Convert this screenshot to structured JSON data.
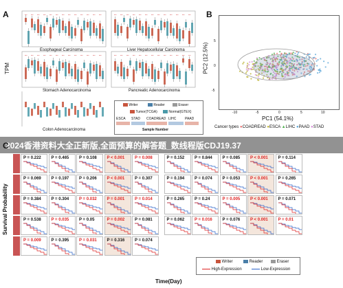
{
  "banner": {
    "title": "2024香港资料大全正新版,全面预算的解答题_数线程版CDJ19.37"
  },
  "panelA": {
    "letter": "A",
    "ylabel": "TPM",
    "subplots": [
      "Esophageal Carcinoma",
      "Liver Hepatocellular Carcinoma",
      "Stomach Adenocarcinoma",
      "Pancreatic Adenocarcinoma",
      "Colon Adenocarcinoma"
    ],
    "legend": {
      "genes": [
        {
          "name": "Writer",
          "color": "#c8553d"
        },
        {
          "name": "Reader",
          "color": "#4a7fa8"
        },
        {
          "name": "Eraser",
          "color": "#999999"
        }
      ],
      "groups": [
        {
          "name": "Tumor(TCGA)",
          "color": "#c8553d"
        },
        {
          "name": "Normal(GTEX)",
          "color": "#4a9aa8"
        }
      ]
    },
    "sample_codes": [
      "ESCA",
      "STAD",
      "COADREAD",
      "LIHC",
      "PAAD"
    ],
    "sample_title": "Sample Number"
  },
  "panelB": {
    "letter": "B",
    "xlabel": "PC1 (54.1%)",
    "ylabel": "PC2 (12.5%)",
    "xticks": [
      "-10",
      "-5",
      "0",
      "5",
      "10"
    ],
    "yticks": [
      "5",
      "0",
      "-5"
    ],
    "legend_title": "Cancer types",
    "legend": [
      {
        "name": "COADREAD",
        "color": "#e86d6d"
      },
      {
        "name": "ESCA",
        "color": "#b9b02e"
      },
      {
        "name": "LIHC",
        "color": "#4fb34f"
      },
      {
        "name": "PAAD",
        "color": "#5aa6d8"
      },
      {
        "name": "STAD",
        "color": "#d58ad8"
      }
    ]
  },
  "panelC": {
    "letter": "C",
    "ylabel": "Survival Probability",
    "xlabel": "Time(Day)",
    "rows": [
      [
        "P = 0.222",
        "P = 0.465",
        "P = 0.108",
        "P < 0.001",
        "P = 0.008",
        "P = 0.152",
        "P = 0.844",
        "P = 0.085",
        "P < 0.001",
        "P = 0.114"
      ],
      [
        "P = 0.069",
        "P = 0.197",
        "P = 0.206",
        "P < 0.001",
        "P = 0.307",
        "P = 0.194",
        "P = 0.074",
        "P = 0.053",
        "P < 0.001",
        "P = 0.265"
      ],
      [
        "P = 0.384",
        "P = 0.304",
        "P = 0.032",
        "P = 0.001",
        "P = 0.014",
        "P = 0.265",
        "P = 0.24",
        "P = 0.005",
        "P < 0.001",
        "P = 0.071"
      ],
      [
        "P = 0.538",
        "P = 0.035",
        "P = 0.05",
        "P = 0.002",
        "P = 0.081",
        "P = 0.062",
        "P = 0.016",
        "P = 0.076",
        "P < 0.001",
        "P = 0.01"
      ],
      [
        "P = 0.009",
        "P = 0.395",
        "P = 0.031",
        "P = 0.316",
        "P = 0.074",
        "",
        "",
        "",
        "",
        ""
      ]
    ],
    "legend_genes": [
      {
        "name": "Writer",
        "color": "#c8553d"
      },
      {
        "name": "Reader",
        "color": "#4a7fa8"
      },
      {
        "name": "Eraser",
        "color": "#999999"
      }
    ],
    "legend_expr": [
      {
        "name": "High-Expression",
        "color": "#d22"
      },
      {
        "name": "Low-Expression",
        "color": "#2a62c9"
      }
    ]
  }
}
